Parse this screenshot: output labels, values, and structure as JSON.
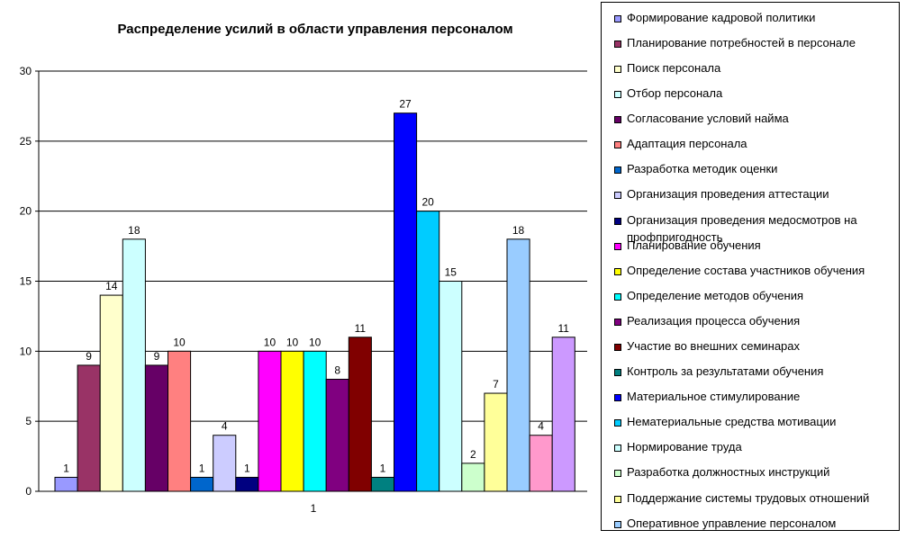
{
  "chart_data": {
    "type": "bar",
    "title": "Распределение усилий в области управления персоналом",
    "categories": [
      "1"
    ],
    "ylim": [
      0,
      30
    ],
    "yticks": [
      0,
      5,
      10,
      15,
      20,
      25,
      30
    ],
    "grid": true,
    "legend_position": "right",
    "series": [
      {
        "name": "Формирование кадровой политики",
        "value": 1,
        "color": "#9999ff"
      },
      {
        "name": "Планирование потребностей в персонале",
        "value": 9,
        "color": "#993366"
      },
      {
        "name": "Поиск персонала",
        "value": 14,
        "color": "#ffffcc"
      },
      {
        "name": "Отбор персонала",
        "value": 18,
        "color": "#ccffff"
      },
      {
        "name": "Согласование условий найма",
        "value": 9,
        "color": "#660066"
      },
      {
        "name": "Адаптация персонала",
        "value": 10,
        "color": "#ff8080"
      },
      {
        "name": "Разработка методик оценки",
        "value": 1,
        "color": "#0066cc"
      },
      {
        "name": "Организация проведения аттестации",
        "value": 4,
        "color": "#ccccff"
      },
      {
        "name": "Организация проведения медосмотров на профпригодность",
        "value": 1,
        "color": "#000080"
      },
      {
        "name": "Планирование обучения",
        "value": 10,
        "color": "#ff00ff"
      },
      {
        "name": "Определение состава участников обучения",
        "value": 10,
        "color": "#ffff00"
      },
      {
        "name": "Определение методов обучения",
        "value": 10,
        "color": "#00ffff"
      },
      {
        "name": "Реализация процесса обучения",
        "value": 8,
        "color": "#800080"
      },
      {
        "name": "Участие во внешних семинарах",
        "value": 11,
        "color": "#800000"
      },
      {
        "name": "Контроль за результатами обучения",
        "value": 1,
        "color": "#008080"
      },
      {
        "name": "Материальное стимулирование",
        "value": 27,
        "color": "#0000ff"
      },
      {
        "name": "Нематериальные средства мотивации",
        "value": 20,
        "color": "#00ccff"
      },
      {
        "name": "Нормирование труда",
        "value": 15,
        "color": "#ccffff"
      },
      {
        "name": "Разработка должностных инструкций",
        "value": 2,
        "color": "#ccffcc"
      },
      {
        "name": "Поддержание системы трудовых отношений",
        "value": 7,
        "color": "#ffff99"
      },
      {
        "name": "Оперативное управление персоналом",
        "value": 18,
        "color": "#99ccff"
      },
      {
        "name": "",
        "value": 4,
        "color": "#ff99cc"
      },
      {
        "name": "",
        "value": 11,
        "color": "#cc99ff"
      }
    ]
  }
}
